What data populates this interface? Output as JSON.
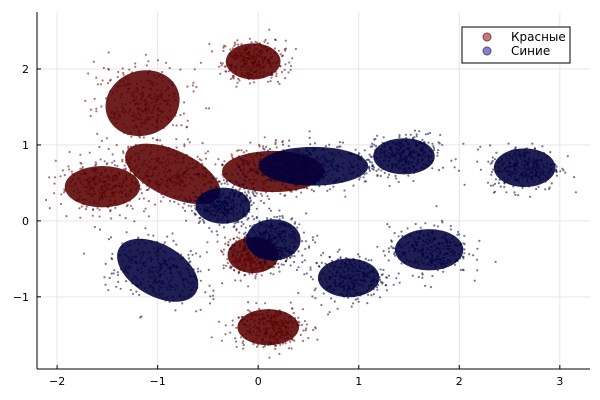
{
  "chart_data": {
    "type": "scatter",
    "title": "",
    "xlabel": "",
    "ylabel": "",
    "xlim": [
      -2.2,
      3.3
    ],
    "ylim": [
      -1.95,
      2.75
    ],
    "xticks": [
      -2,
      -1,
      0,
      1,
      2,
      3
    ],
    "yticks": [
      -1,
      0,
      1,
      2
    ],
    "grid": true,
    "legend_position": "top-right",
    "legend": [
      {
        "label": "Красные",
        "color": "#8b0000"
      },
      {
        "label": "Синие",
        "color": "#00005a"
      }
    ],
    "series": [
      {
        "name": "Красные",
        "color": "#5a0000",
        "clusters": [
          {
            "cx": -0.05,
            "cy": 2.1,
            "sx": 0.16,
            "sy": 0.14,
            "rot": 0
          },
          {
            "cx": -1.15,
            "cy": 1.55,
            "sx": 0.22,
            "sy": 0.25,
            "rot": 20
          },
          {
            "cx": -1.55,
            "cy": 0.45,
            "sx": 0.22,
            "sy": 0.16,
            "rot": 0
          },
          {
            "cx": -0.85,
            "cy": 0.62,
            "sx": 0.3,
            "sy": 0.18,
            "rot": -25
          },
          {
            "cx": 0.15,
            "cy": 0.65,
            "sx": 0.3,
            "sy": 0.16,
            "rot": 0
          },
          {
            "cx": -0.05,
            "cy": -0.45,
            "sx": 0.15,
            "sy": 0.14,
            "rot": 0
          },
          {
            "cx": 0.1,
            "cy": -1.4,
            "sx": 0.18,
            "sy": 0.14,
            "rot": 0
          }
        ]
      },
      {
        "name": "Синие",
        "color": "#00003c",
        "clusters": [
          {
            "cx": -0.35,
            "cy": 0.2,
            "sx": 0.16,
            "sy": 0.14,
            "rot": 0
          },
          {
            "cx": 0.15,
            "cy": -0.25,
            "sx": 0.16,
            "sy": 0.16,
            "rot": 0
          },
          {
            "cx": 0.55,
            "cy": 0.72,
            "sx": 0.32,
            "sy": 0.15,
            "rot": 0
          },
          {
            "cx": 1.45,
            "cy": 0.85,
            "sx": 0.18,
            "sy": 0.14,
            "rot": 0
          },
          {
            "cx": 2.65,
            "cy": 0.7,
            "sx": 0.18,
            "sy": 0.15,
            "rot": 0
          },
          {
            "cx": 0.9,
            "cy": -0.75,
            "sx": 0.18,
            "sy": 0.15,
            "rot": 0
          },
          {
            "cx": 1.7,
            "cy": -0.38,
            "sx": 0.2,
            "sy": 0.16,
            "rot": 0
          },
          {
            "cx": -1.0,
            "cy": -0.65,
            "sx": 0.26,
            "sy": 0.2,
            "rot": -30
          }
        ]
      }
    ]
  }
}
